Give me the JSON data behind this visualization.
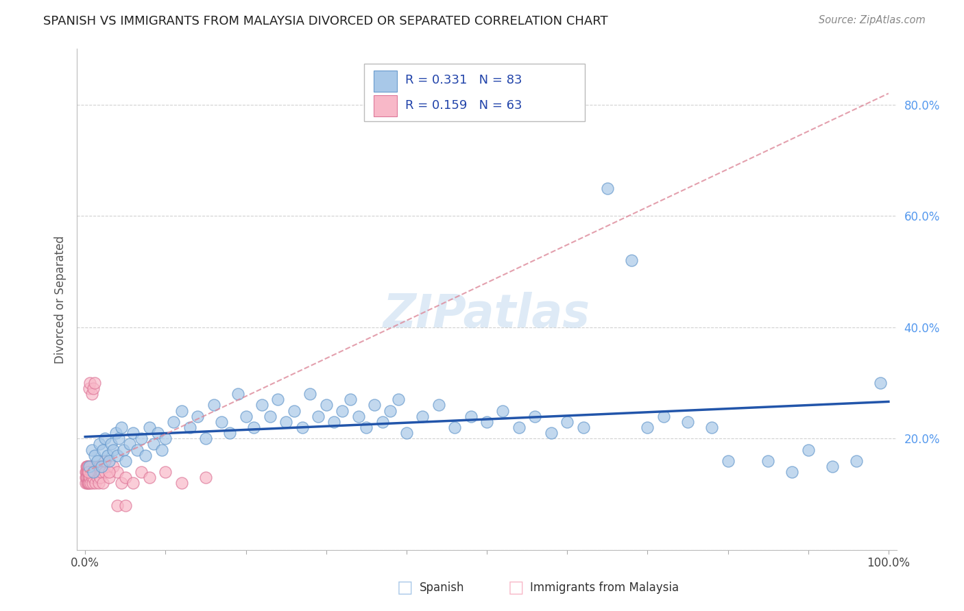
{
  "title": "SPANISH VS IMMIGRANTS FROM MALAYSIA DIVORCED OR SEPARATED CORRELATION CHART",
  "source_text": "Source: ZipAtlas.com",
  "ylabel": "Divorced or Separated",
  "series1_name": "Spanish",
  "series1_color": "#a8c8e8",
  "series1_edge_color": "#6699cc",
  "series2_name": "Immigrants from Malaysia",
  "series2_color": "#f8b8c8",
  "series2_edge_color": "#dd7799",
  "trendline1_color": "#2255aa",
  "trendline2_color": "#dd8899",
  "background_color": "#ffffff",
  "grid_color": "#cccccc",
  "right_axis_color": "#5599ee",
  "watermark_color": "#c8ddf0",
  "legend_text_color": "#2244aa",
  "title_color": "#222222"
}
